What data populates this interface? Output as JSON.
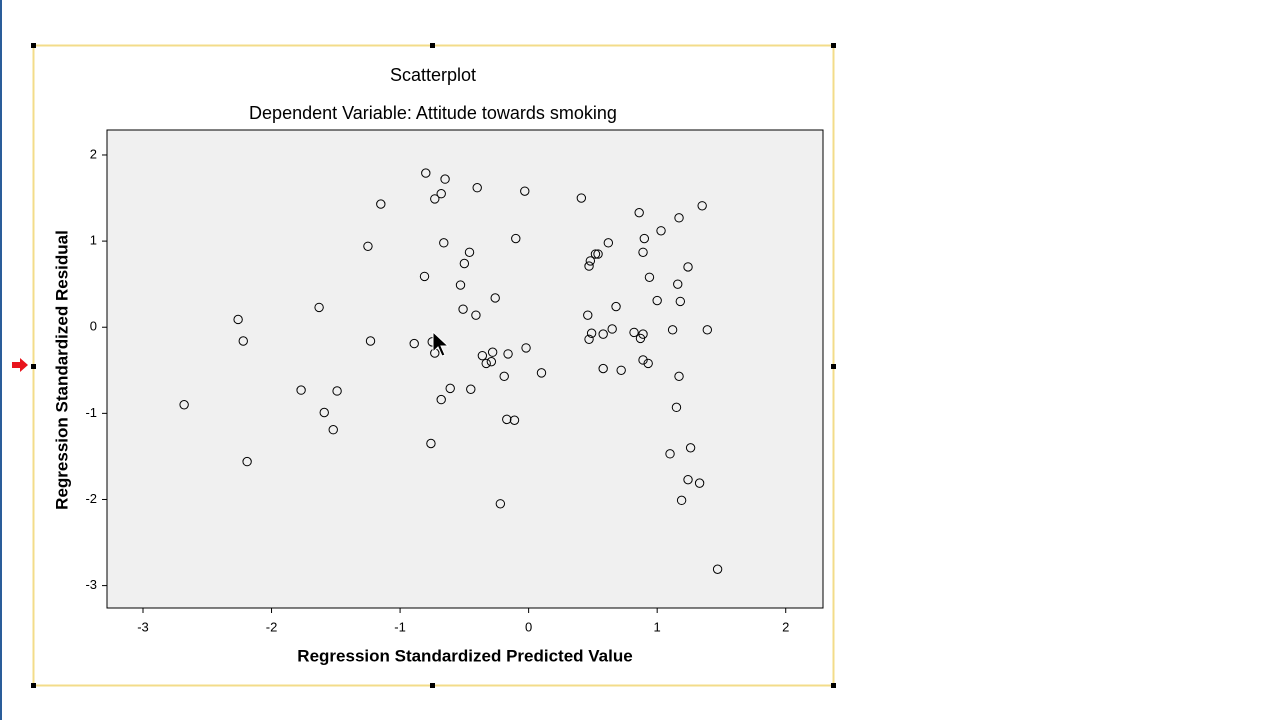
{
  "chart_data": {
    "type": "scatter",
    "title": "Scatterplot",
    "subtitle": "Dependent Variable: Attitude towards smoking",
    "x_label": "Regression Standardized Predicted Value",
    "y_label": "Regression Standardized Residual",
    "xlim": [
      -3.28,
      2.29
    ],
    "ylim": [
      -3.26,
      2.29
    ],
    "xticks": [
      -3,
      -2,
      -1,
      0,
      1,
      2
    ],
    "yticks": [
      -3,
      -2,
      -1,
      0,
      1,
      2
    ],
    "color": "#000000",
    "series": [
      {
        "x": [
          -2.68,
          -2.26,
          -2.22,
          -2.19,
          -1.77,
          -1.63,
          -1.59,
          -1.52,
          -1.49,
          -1.25,
          -1.23,
          -1.15,
          -0.89,
          -0.81,
          -0.8,
          -0.76,
          -0.75,
          -0.73,
          -0.73,
          -0.68,
          -0.68,
          -0.66,
          -0.65,
          -0.61,
          -0.53,
          -0.51,
          -0.5,
          -0.46,
          -0.45,
          -0.41,
          -0.4,
          -0.36,
          -0.33,
          -0.29,
          -0.28,
          -0.26,
          -0.22,
          -0.19,
          -0.17,
          -0.16,
          -0.11,
          -0.1,
          -0.03,
          -0.02,
          0.1,
          0.41,
          0.46,
          0.47,
          0.47,
          0.48,
          0.49,
          0.52,
          0.54,
          0.58,
          0.58,
          0.62,
          0.65,
          0.68,
          0.72,
          0.82,
          0.86,
          0.87,
          0.89,
          0.89,
          0.89,
          0.9,
          0.93,
          0.94,
          1.0,
          1.03,
          1.1,
          1.12,
          1.15,
          1.16,
          1.17,
          1.17,
          1.18,
          1.19,
          1.24,
          1.24,
          1.26,
          1.33,
          1.35,
          1.39,
          1.47
        ],
        "values": [
          -0.9,
          0.09,
          -0.16,
          -1.56,
          -0.73,
          0.23,
          -0.99,
          -1.19,
          -0.74,
          0.94,
          -0.16,
          1.43,
          -0.19,
          0.59,
          1.79,
          -1.35,
          -0.17,
          -0.3,
          1.49,
          1.55,
          -0.84,
          0.98,
          1.72,
          -0.71,
          0.49,
          0.21,
          0.74,
          0.87,
          -0.72,
          0.14,
          1.62,
          -0.33,
          -0.42,
          -0.4,
          -0.29,
          0.34,
          -2.05,
          -0.57,
          -1.07,
          -0.31,
          -1.08,
          1.03,
          1.58,
          -0.24,
          -0.53,
          1.5,
          0.14,
          -0.14,
          0.71,
          0.77,
          -0.07,
          0.85,
          0.85,
          -0.48,
          -0.08,
          0.98,
          -0.02,
          0.24,
          -0.5,
          -0.06,
          1.33,
          -0.13,
          0.87,
          -0.08,
          -0.38,
          1.03,
          -0.42,
          0.58,
          0.31,
          1.12,
          -1.47,
          -0.03,
          -0.93,
          0.5,
          1.27,
          -0.57,
          0.3,
          -2.01,
          0.7,
          -1.77,
          -1.4,
          -1.81,
          1.41,
          -0.03,
          -2.81
        ]
      }
    ]
  }
}
